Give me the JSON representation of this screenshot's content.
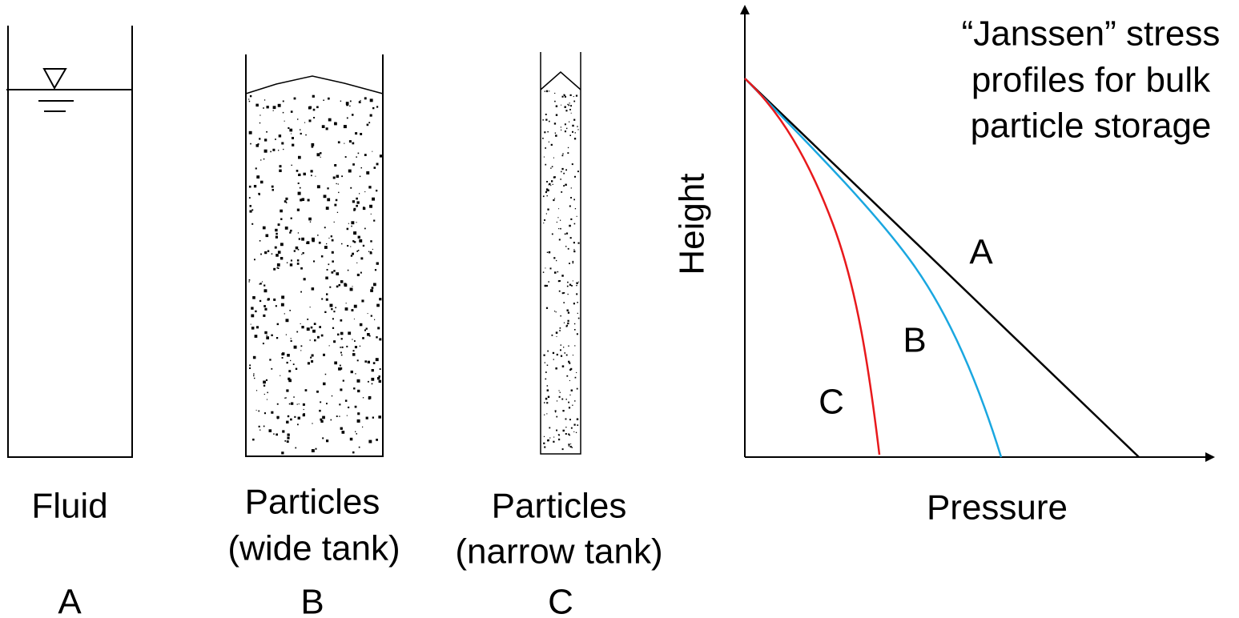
{
  "tanks": [
    {
      "label": [
        "Fluid"
      ],
      "letter": "A"
    },
    {
      "label": [
        "Particles",
        "(wide tank)"
      ],
      "letter": "B"
    },
    {
      "label": [
        "Particles",
        "(narrow tank)"
      ],
      "letter": "C"
    }
  ],
  "graph": {
    "title": [
      "“Janssen” stress",
      "profiles for bulk",
      "particle storage"
    ],
    "y_label": "Height",
    "x_label": "Pressure",
    "curve_labels": [
      "A",
      "B",
      "C"
    ]
  }
}
